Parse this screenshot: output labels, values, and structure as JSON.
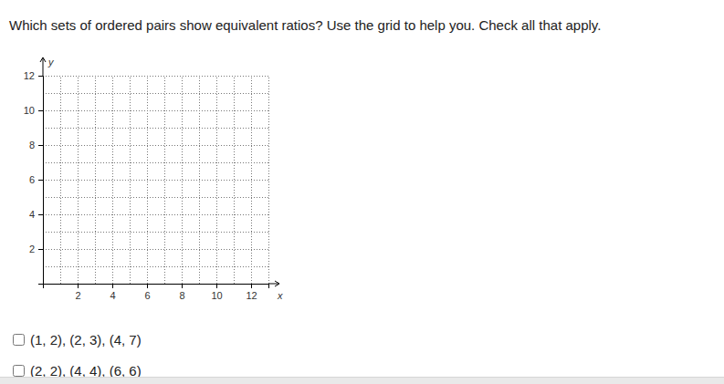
{
  "question": "Which sets of ordered pairs show equivalent ratios? Use the grid to help you. Check all that apply.",
  "chart_data": {
    "type": "scatter",
    "x_label": "x",
    "y_label": "y",
    "xlim": [
      0,
      13
    ],
    "ylim": [
      0,
      12
    ],
    "xticks": [
      2,
      4,
      6,
      8,
      10,
      12
    ],
    "yticks": [
      2,
      4,
      6,
      8,
      10,
      12
    ],
    "grid": true
  },
  "options": [
    "(1, 2), (2, 3), (4, 7)",
    "(2, 2), (4, 4), (6, 6)"
  ]
}
